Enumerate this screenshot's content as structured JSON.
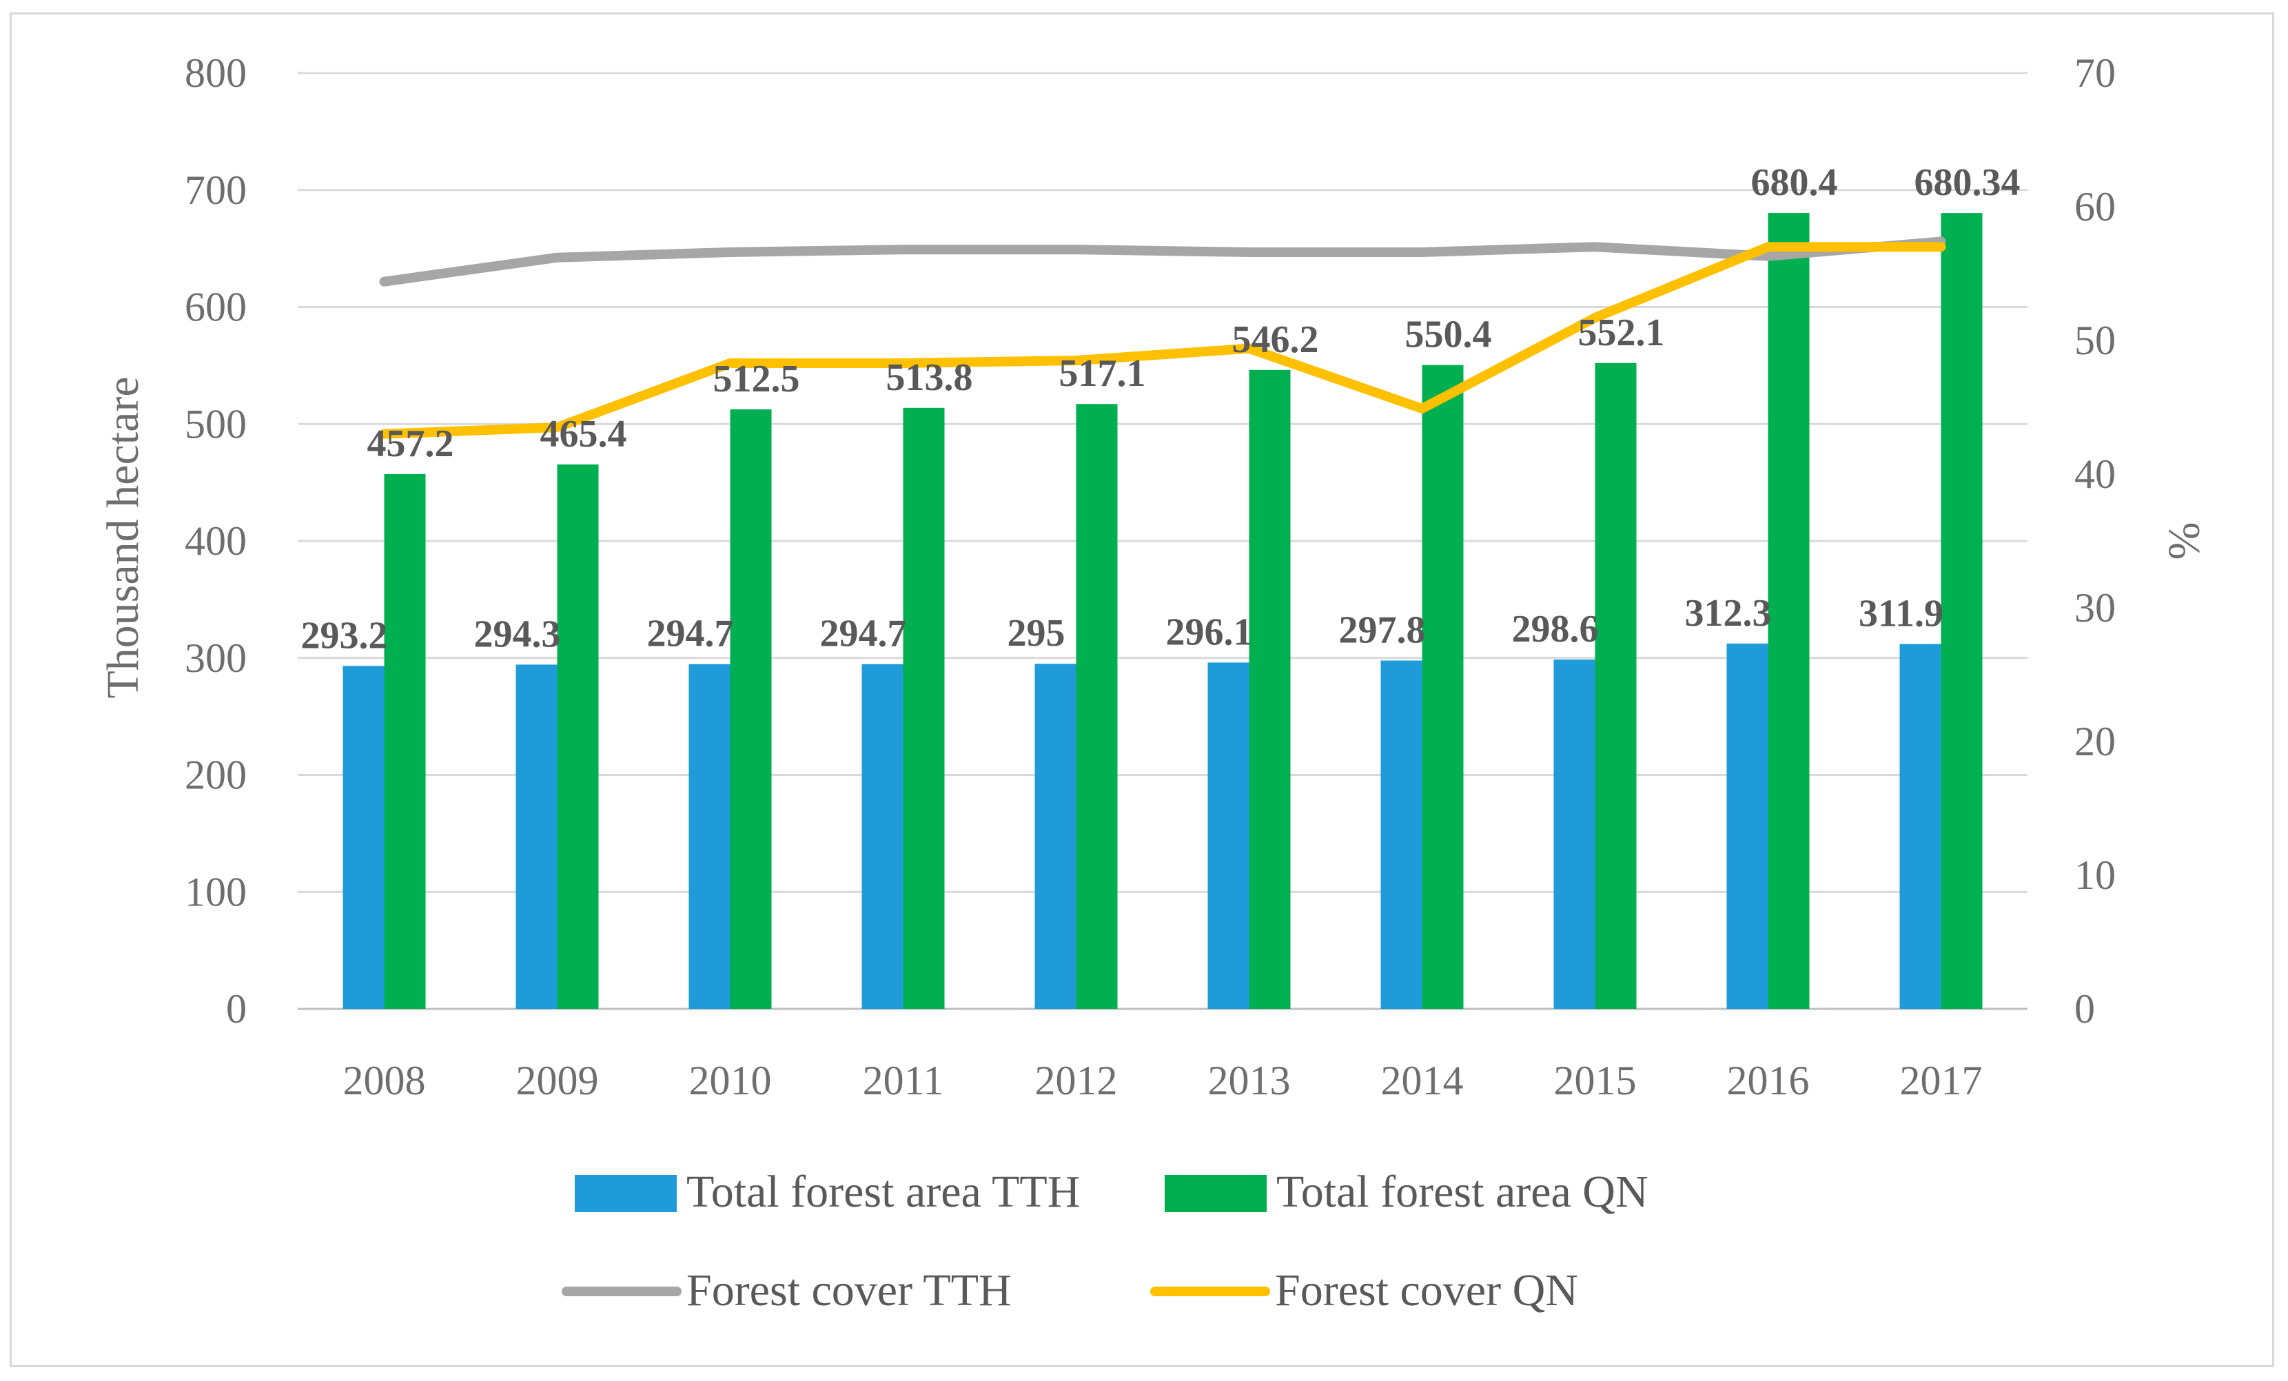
{
  "chart_data": {
    "type": "bar",
    "categories": [
      "2008",
      "2009",
      "2010",
      "2011",
      "2012",
      "2013",
      "2014",
      "2015",
      "2016",
      "2017"
    ],
    "series": [
      {
        "name": "Total forest area TTH",
        "kind": "bar",
        "axis": "left",
        "color": "#1f9bd9",
        "values": [
          293.2,
          294.3,
          294.7,
          294.7,
          295,
          296.1,
          297.8,
          298.6,
          312.3,
          311.9
        ],
        "labels": [
          "293.2",
          "294.3",
          "294.7",
          "294.7",
          "295",
          "296.1",
          "297.8",
          "298.6",
          "312.3",
          "311.9"
        ]
      },
      {
        "name": "Total forest area QN",
        "kind": "bar",
        "axis": "left",
        "color": "#00b050",
        "values": [
          457.2,
          465.4,
          512.5,
          513.8,
          517.1,
          546.2,
          550.4,
          552.1,
          680.4,
          680.34
        ],
        "labels": [
          "457.2",
          "465.4",
          "512.5",
          "513.8",
          "517.1",
          "546.2",
          "550.4",
          "552.1",
          "680.4",
          "680.34"
        ]
      },
      {
        "name": "Forest cover TTH",
        "kind": "line",
        "axis": "right",
        "color": "#a6a6a6",
        "values": [
          54.4,
          56.2,
          56.6,
          56.8,
          56.8,
          56.6,
          56.6,
          57.0,
          56.3,
          57.4
        ]
      },
      {
        "name": "Forest cover QN",
        "kind": "line",
        "axis": "right",
        "color": "#ffc000",
        "values": [
          43.0,
          43.5,
          48.3,
          48.3,
          48.5,
          49.4,
          44.9,
          51.7,
          57.0,
          57.0
        ]
      }
    ],
    "ylabel": "Thousand hectare",
    "y2label": "%",
    "ylim": [
      0,
      800
    ],
    "y2lim": [
      0,
      70
    ],
    "yticks": [
      "0",
      "100",
      "200",
      "300",
      "400",
      "500",
      "600",
      "700",
      "800"
    ],
    "y2ticks": [
      "0",
      "10",
      "20",
      "30",
      "40",
      "50",
      "60",
      "70"
    ],
    "grid": true,
    "legend": "bottom"
  }
}
